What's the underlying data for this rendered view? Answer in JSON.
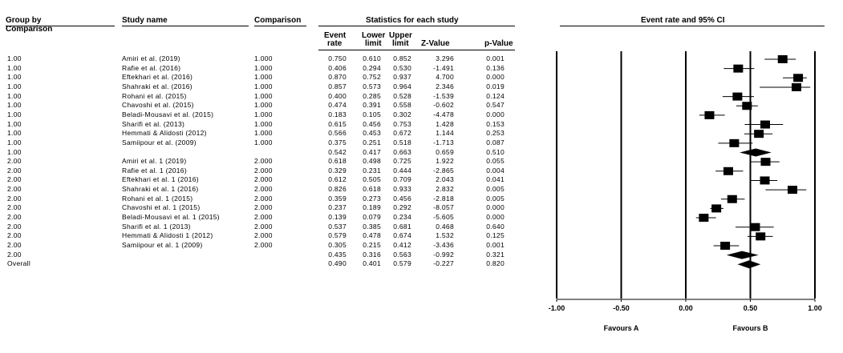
{
  "headers": {
    "group_by": "Group by",
    "comparison_left": "Comparison",
    "study_name": "Study name",
    "comparison": "Comparison",
    "stats_title": "Statistics for each study",
    "event_rate_1": "Event",
    "event_rate_2": "rate",
    "lower_1": "Lower",
    "lower_2": "limit",
    "upper_1": "Upper",
    "upper_2": "limit",
    "z_value": "Z-Value",
    "p_value": "p-Value",
    "plot_title": "Event rate and 95% CI"
  },
  "rows": [
    {
      "group": "1.00",
      "study": "Amiri et al. (2019)",
      "comparison": "1.000",
      "rate": "0.750",
      "lower": "0.610",
      "upper": "0.852",
      "z": "3.296",
      "p": "0.001"
    },
    {
      "group": "1.00",
      "study": "Rafie et al. (2016)",
      "comparison": "1.000",
      "rate": "0.406",
      "lower": "0.294",
      "upper": "0.530",
      "z": "-1.491",
      "p": "0.136"
    },
    {
      "group": "1.00",
      "study": "Eftekhari et al. (2016)",
      "comparison": "1.000",
      "rate": "0.870",
      "lower": "0.752",
      "upper": "0.937",
      "z": "4.700",
      "p": "0.000"
    },
    {
      "group": "1.00",
      "study": "Shahraki et al. (2016)",
      "comparison": "1.000",
      "rate": "0.857",
      "lower": "0.573",
      "upper": "0.964",
      "z": "2.346",
      "p": "0.019"
    },
    {
      "group": "1.00",
      "study": "Rohani et al. (2015)",
      "comparison": "1.000",
      "rate": "0.400",
      "lower": "0.285",
      "upper": "0.528",
      "z": "-1.539",
      "p": "0.124"
    },
    {
      "group": "1.00",
      "study": "Chavoshi et al. (2015)",
      "comparison": "1.000",
      "rate": "0.474",
      "lower": "0.391",
      "upper": "0.558",
      "z": "-0.602",
      "p": "0.547"
    },
    {
      "group": "1.00",
      "study": "Beladi-Mousavi et al. (2015)",
      "comparison": "1.000",
      "rate": "0.183",
      "lower": "0.105",
      "upper": "0.302",
      "z": "-4.478",
      "p": "0.000"
    },
    {
      "group": "1.00",
      "study": "Sharifi et al. (2013)",
      "comparison": "1.000",
      "rate": "0.615",
      "lower": "0.456",
      "upper": "0.753",
      "z": "1.428",
      "p": "0.153"
    },
    {
      "group": "1.00",
      "study": "Hemmati & Alidosti (2012)",
      "comparison": "1.000",
      "rate": "0.566",
      "lower": "0.453",
      "upper": "0.672",
      "z": "1.144",
      "p": "0.253"
    },
    {
      "group": "1.00",
      "study": "Samiipour et al. (2009)",
      "comparison": "1.000",
      "rate": "0.375",
      "lower": "0.251",
      "upper": "0.518",
      "z": "-1.713",
      "p": "0.087"
    },
    {
      "group": "1.00",
      "study": "",
      "comparison": "",
      "rate": "0.542",
      "lower": "0.417",
      "upper": "0.663",
      "z": "0.659",
      "p": "0.510",
      "summary": true
    },
    {
      "group": "2.00",
      "study": "Amiri et al. 1 (2019)",
      "comparison": "2.000",
      "rate": "0.618",
      "lower": "0.498",
      "upper": "0.725",
      "z": "1.922",
      "p": "0.055"
    },
    {
      "group": "2.00",
      "study": "Rafie et al. 1 (2016)",
      "comparison": "2.000",
      "rate": "0.329",
      "lower": "0.231",
      "upper": "0.444",
      "z": "-2.865",
      "p": "0.004"
    },
    {
      "group": "2.00",
      "study": "Eftekhari et al. 1 (2016)",
      "comparison": "2.000",
      "rate": "0.612",
      "lower": "0.505",
      "upper": "0.709",
      "z": "2.043",
      "p": "0.041"
    },
    {
      "group": "2.00",
      "study": "Shahraki et al. 1 (2016)",
      "comparison": "2.000",
      "rate": "0.826",
      "lower": "0.618",
      "upper": "0.933",
      "z": "2.832",
      "p": "0.005"
    },
    {
      "group": "2.00",
      "study": "Rohani et al. 1 (2015)",
      "comparison": "2.000",
      "rate": "0.359",
      "lower": "0.273",
      "upper": "0.456",
      "z": "-2.818",
      "p": "0.005"
    },
    {
      "group": "2.00",
      "study": "Chavoshi et al. 1 (2015)",
      "comparison": "2.000",
      "rate": "0.237",
      "lower": "0.189",
      "upper": "0.292",
      "z": "-8.057",
      "p": "0.000"
    },
    {
      "group": "2.00",
      "study": "Beladi-Mousavi et al. 1 (2015)",
      "comparison": "2.000",
      "rate": "0.139",
      "lower": "0.079",
      "upper": "0.234",
      "z": "-5.605",
      "p": "0.000"
    },
    {
      "group": "2.00",
      "study": "Sharifi et al. 1 (2013)",
      "comparison": "2.000",
      "rate": "0.537",
      "lower": "0.385",
      "upper": "0.681",
      "z": "0.468",
      "p": "0.640"
    },
    {
      "group": "2.00",
      "study": "Hemmati & Alidosti 1 (2012)",
      "comparison": "2.000",
      "rate": "0.579",
      "lower": "0.478",
      "upper": "0.674",
      "z": "1.532",
      "p": "0.125"
    },
    {
      "group": "2.00",
      "study": "Samiipour et al. 1 (2009)",
      "comparison": "2.000",
      "rate": "0.305",
      "lower": "0.215",
      "upper": "0.412",
      "z": "-3.436",
      "p": "0.001"
    },
    {
      "group": "2.00",
      "study": "",
      "comparison": "",
      "rate": "0.435",
      "lower": "0.316",
      "upper": "0.563",
      "z": "-0.992",
      "p": "0.321",
      "summary": true
    },
    {
      "group": "Overall",
      "study": "",
      "comparison": "",
      "rate": "0.490",
      "lower": "0.401",
      "upper": "0.579",
      "z": "-0.227",
      "p": "0.820",
      "summary": true
    }
  ],
  "chart_data": {
    "type": "forest",
    "title": "Event rate and 95% CI",
    "xlim": [
      -1.0,
      1.0
    ],
    "x_ticks": [
      -1.0,
      -0.5,
      0.0,
      0.5,
      1.0
    ],
    "x_tick_labels": [
      "-1.00",
      "-0.50",
      "0.00",
      "0.50",
      "1.00"
    ],
    "reference_lines": [
      -1.0,
      -0.5,
      0.0,
      0.5,
      1.0
    ],
    "favours_left": "Favours A",
    "favours_right": "Favours B"
  }
}
